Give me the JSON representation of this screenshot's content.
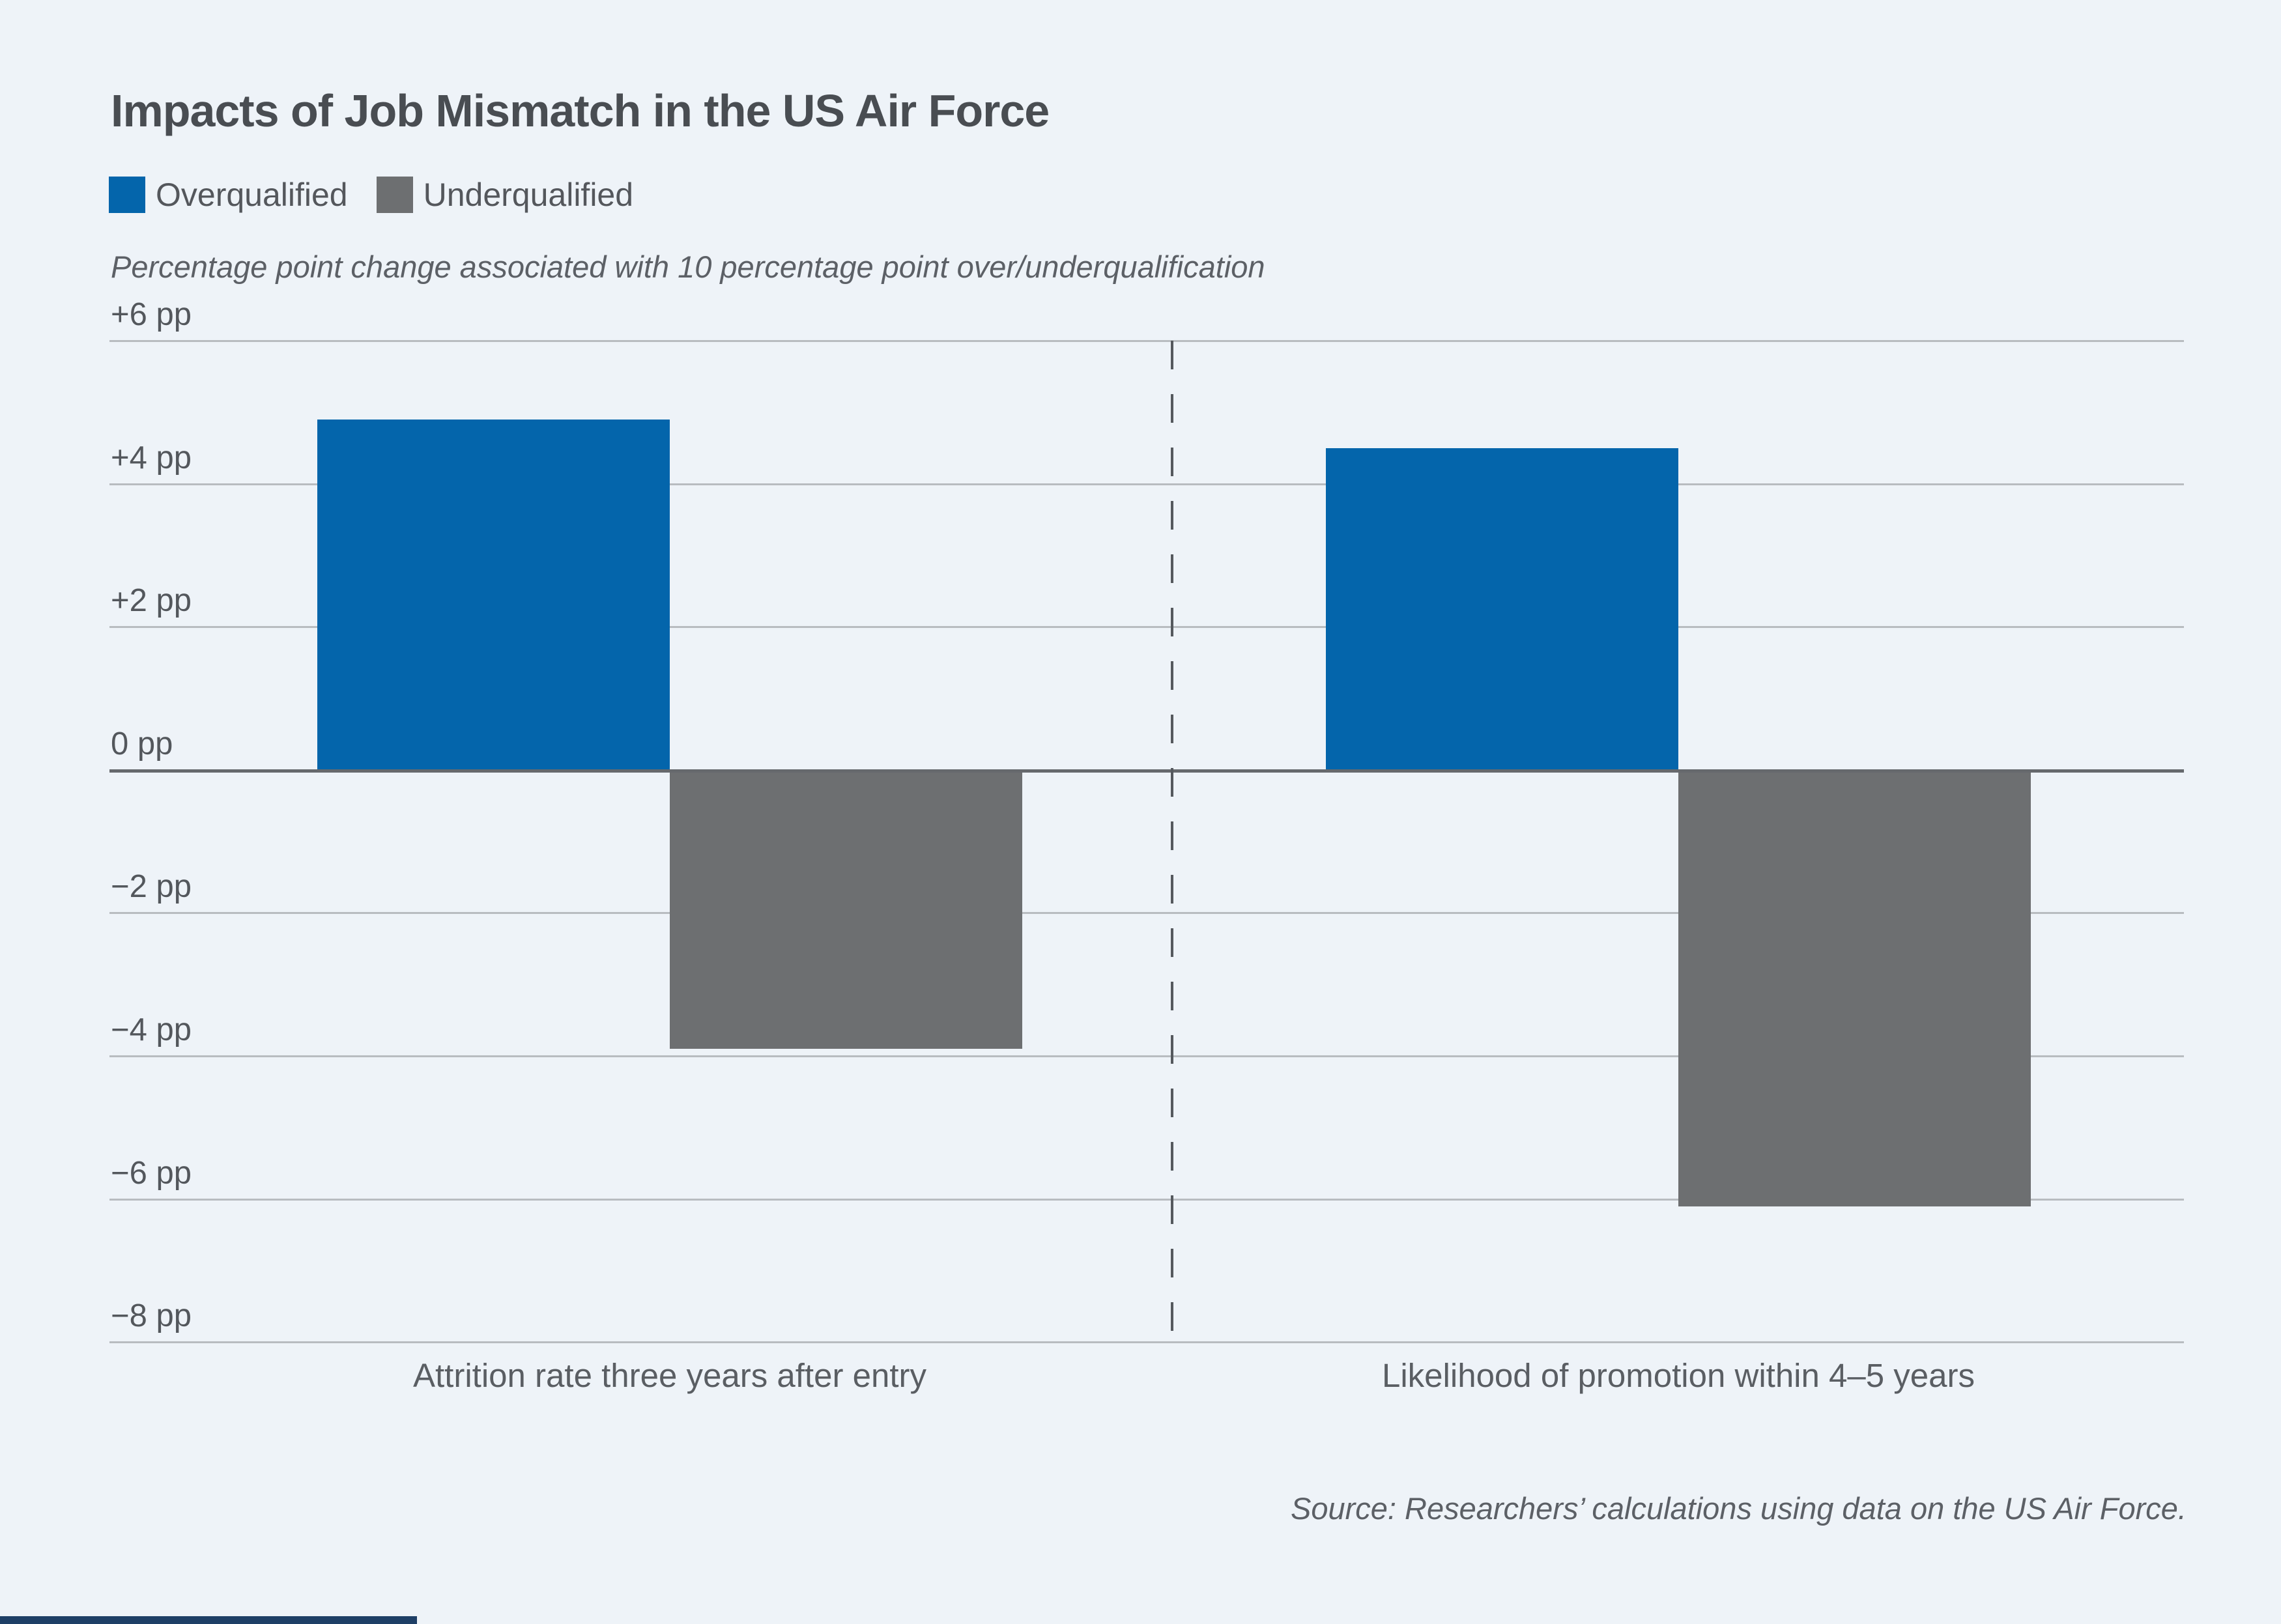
{
  "title": "Impacts of Job Mismatch in the US Air Force",
  "legend": [
    {
      "label": "Overqualified",
      "color": "#0465ab"
    },
    {
      "label": "Underqualified",
      "color": "#6d6f71"
    }
  ],
  "subtitle": "Percentage point change associated with 10 percentage point over/underqualification",
  "source": "Source: Researchers’ calculations using data on the US Air Force.",
  "colors": {
    "background": "#eef3f8",
    "overqualified_blue": "#0465ab",
    "underqualified_gray": "#6d6f71",
    "gridline": "#b8bcc0",
    "zero_line": "#66696d",
    "divider_dash": "#55595e",
    "footer_accent": "#1e3f66",
    "title_text": "#494d52",
    "body_text": "#5a5e63"
  },
  "chart_data": {
    "type": "bar",
    "categories": [
      "Attrition rate three years after entry",
      "Likelihood of promotion within 4–5 years"
    ],
    "series": [
      {
        "name": "Overqualified",
        "color": "#0465ab",
        "values": [
          4.9,
          4.5
        ]
      },
      {
        "name": "Underqualified",
        "color": "#6d6f71",
        "values": [
          -3.9,
          -6.1
        ]
      }
    ],
    "title": "Impacts of Job Mismatch in the US Air Force",
    "subtitle": "Percentage point change associated with 10 percentage point over/underqualification",
    "unit": "pp",
    "ylim": [
      -8,
      6
    ],
    "yticks": [
      {
        "value": 6,
        "label": "+6 pp"
      },
      {
        "value": 4,
        "label": "+4 pp"
      },
      {
        "value": 2,
        "label": "+2 pp"
      },
      {
        "value": 0,
        "label": "0 pp"
      },
      {
        "value": -2,
        "label": "−2 pp"
      },
      {
        "value": -4,
        "label": "−4 pp"
      },
      {
        "value": -6,
        "label": "−6 pp"
      },
      {
        "value": -8,
        "label": "−8 pp"
      }
    ],
    "grid": true,
    "zero_baseline": true,
    "group_divider": "dashed-vertical",
    "legend_position": "top-left"
  }
}
